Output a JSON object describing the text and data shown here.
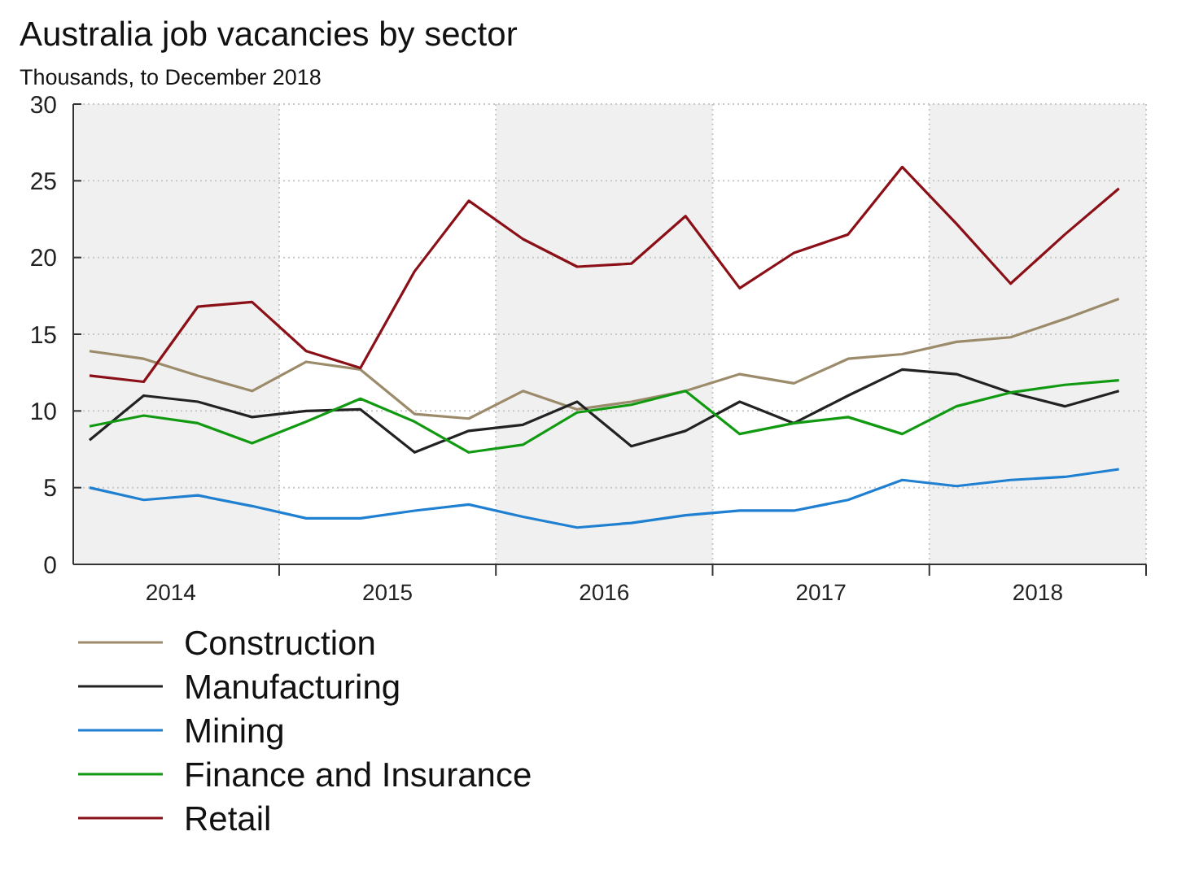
{
  "chart_data": {
    "type": "line",
    "title": "Australia job vacancies by sector",
    "subtitle": "Thousands, to December 2018",
    "x": [
      2014.125,
      2014.375,
      2014.625,
      2014.875,
      2015.125,
      2015.375,
      2015.625,
      2015.875,
      2016.125,
      2016.375,
      2016.625,
      2016.875,
      2017.125,
      2017.375,
      2017.625,
      2017.875,
      2018.125,
      2018.375,
      2018.625,
      2018.875
    ],
    "series": [
      {
        "name": "Construction",
        "color": "#9c8b6a",
        "values": [
          13.9,
          13.4,
          12.3,
          11.3,
          13.2,
          12.7,
          9.8,
          9.5,
          11.3,
          10.1,
          10.6,
          11.3,
          12.4,
          11.8,
          13.4,
          13.7,
          14.5,
          14.8,
          16.0,
          17.3
        ]
      },
      {
        "name": "Manufacturing",
        "color": "#222222",
        "values": [
          8.1,
          11.0,
          10.6,
          9.6,
          10.0,
          10.1,
          7.3,
          8.7,
          9.1,
          10.6,
          7.7,
          8.7,
          10.6,
          9.2,
          11.0,
          12.7,
          12.4,
          11.2,
          10.3,
          11.3
        ]
      },
      {
        "name": "Mining",
        "color": "#1f7fd0",
        "values": [
          5.0,
          4.2,
          4.5,
          3.8,
          3.0,
          3.0,
          3.5,
          3.9,
          3.1,
          2.4,
          2.7,
          3.2,
          3.5,
          3.5,
          4.2,
          5.5,
          5.1,
          5.5,
          5.7,
          6.2
        ]
      },
      {
        "name": "Finance and Insurance",
        "color": "#119a11",
        "values": [
          9.0,
          9.7,
          9.2,
          7.9,
          9.3,
          10.8,
          9.3,
          7.3,
          7.8,
          9.9,
          10.4,
          11.3,
          8.5,
          9.2,
          9.6,
          8.5,
          10.3,
          11.2,
          11.7,
          12.0
        ]
      },
      {
        "name": "Retail",
        "color": "#8b0f17",
        "values": [
          12.3,
          11.9,
          16.8,
          17.1,
          13.9,
          12.8,
          19.1,
          23.7,
          21.2,
          19.4,
          19.6,
          22.7,
          18.0,
          20.3,
          21.5,
          25.9,
          22.2,
          18.3,
          21.5,
          24.5
        ]
      }
    ],
    "xlim": [
      2014.05,
      2019
    ],
    "xticks": [
      {
        "value": 2014.5,
        "label": "2014"
      },
      {
        "value": 2015,
        "label": null
      },
      {
        "value": 2015.5,
        "label": "2015"
      },
      {
        "value": 2016,
        "label": null
      },
      {
        "value": 2016.5,
        "label": "2016"
      },
      {
        "value": 2017,
        "label": null
      },
      {
        "value": 2017.5,
        "label": "2017"
      },
      {
        "value": 2018,
        "label": null
      },
      {
        "value": 2018.5,
        "label": "2018"
      },
      {
        "value": 2019,
        "label": null
      }
    ],
    "ylim": [
      0,
      30
    ],
    "yticks": [
      0,
      5,
      10,
      15,
      20,
      25,
      30
    ],
    "bands": [
      {
        "axis": "x",
        "from": 2014.05,
        "to": 2015,
        "color": "#f0f0f0"
      },
      {
        "axis": "x",
        "from": 2016,
        "to": 2017,
        "color": "#f0f0f0"
      },
      {
        "axis": "x",
        "from": 2018,
        "to": 2019,
        "color": "#f0f0f0"
      }
    ],
    "grid": true,
    "legend": "bottom",
    "line_style": "solid",
    "marker": "none"
  }
}
